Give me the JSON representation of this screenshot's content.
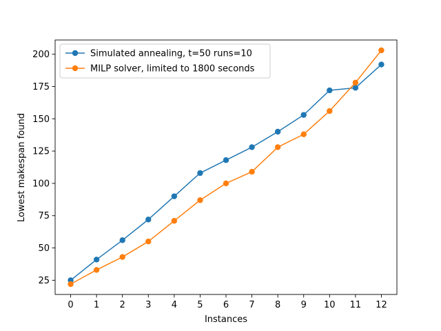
{
  "chart_data": {
    "type": "line",
    "xlabel": "Instances",
    "ylabel": "Lowest makespan found",
    "x": [
      0,
      1,
      2,
      3,
      4,
      5,
      6,
      7,
      8,
      9,
      10,
      11,
      12
    ],
    "xticks": [
      "0",
      "1",
      "2",
      "3",
      "4",
      "5",
      "6",
      "7",
      "8",
      "9",
      "10",
      "11",
      "12"
    ],
    "yticks": [
      25,
      50,
      75,
      100,
      125,
      150,
      175,
      200
    ],
    "xlim": [
      -0.6,
      12.6
    ],
    "ylim": [
      14,
      211
    ],
    "legend_position": "upper-left",
    "grid": false,
    "series": [
      {
        "name": "Simulated annealing, t=50 runs=10",
        "color": "#1f77b4",
        "values": [
          25,
          41,
          56,
          72,
          90,
          108,
          118,
          128,
          140,
          153,
          172,
          174,
          192
        ]
      },
      {
        "name": "MILP solver, limited to 1800 seconds",
        "color": "#ff7f0e",
        "values": [
          22,
          33,
          43,
          55,
          71,
          87,
          100,
          109,
          128,
          138,
          156,
          178,
          203
        ]
      }
    ]
  }
}
